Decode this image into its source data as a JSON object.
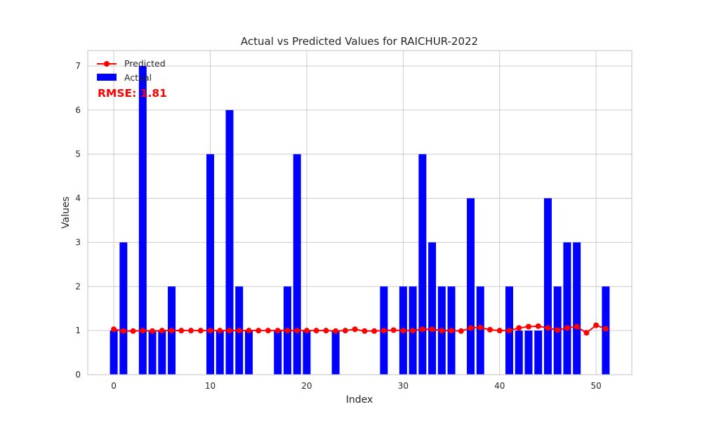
{
  "chart_data": {
    "type": "bar",
    "title": "Actual vs Predicted Values for RAICHUR-2022",
    "xlabel": "Index",
    "ylabel": "Values",
    "xlim": [
      -2.7,
      53.7
    ],
    "ylim": [
      0,
      7.35
    ],
    "xticks": [
      0,
      10,
      20,
      30,
      40,
      50
    ],
    "yticks": [
      0,
      1,
      2,
      3,
      4,
      5,
      6,
      7
    ],
    "grid": true,
    "legend_position": "top-left",
    "annotation": {
      "text": "RMSE: 1.81",
      "color": "#ff0000"
    },
    "series": [
      {
        "name": "Actual",
        "kind": "bar",
        "color": "#0000ff",
        "x": [
          0,
          1,
          2,
          3,
          4,
          5,
          6,
          7,
          8,
          9,
          10,
          11,
          12,
          13,
          14,
          15,
          16,
          17,
          18,
          19,
          20,
          21,
          22,
          23,
          24,
          25,
          26,
          27,
          28,
          29,
          30,
          31,
          32,
          33,
          34,
          35,
          36,
          37,
          38,
          39,
          40,
          41,
          42,
          43,
          44,
          45,
          46,
          47,
          48,
          49,
          50,
          51
        ],
        "values": [
          1,
          3,
          0,
          7,
          1,
          1,
          2,
          0,
          0,
          0,
          5,
          1,
          6,
          2,
          1,
          0,
          0,
          1,
          2,
          5,
          1,
          0,
          0,
          1,
          0,
          0,
          0,
          0,
          2,
          0,
          2,
          2,
          5,
          3,
          2,
          2,
          0,
          4,
          2,
          0,
          0,
          2,
          1,
          1,
          1,
          4,
          2,
          3,
          3,
          0,
          0,
          2
        ]
      },
      {
        "name": "Predicted",
        "kind": "line",
        "color": "#ff0000",
        "x": [
          0,
          1,
          2,
          3,
          4,
          5,
          6,
          7,
          8,
          9,
          10,
          11,
          12,
          13,
          14,
          15,
          16,
          17,
          18,
          19,
          20,
          21,
          22,
          23,
          24,
          25,
          26,
          27,
          28,
          29,
          30,
          31,
          32,
          33,
          34,
          35,
          36,
          37,
          38,
          39,
          40,
          41,
          42,
          43,
          44,
          45,
          46,
          47,
          48,
          49,
          50,
          51
        ],
        "values": [
          1.03,
          0.99,
          0.99,
          1.0,
          0.99,
          1.0,
          1.0,
          1.0,
          1.0,
          1.0,
          1.0,
          1.0,
          1.0,
          1.0,
          1.0,
          1.0,
          1.0,
          1.0,
          1.0,
          1.0,
          1.0,
          1.0,
          1.0,
          0.99,
          1.0,
          1.03,
          0.99,
          0.99,
          1.0,
          1.01,
          1.0,
          1.0,
          1.03,
          1.03,
          1.0,
          1.0,
          0.99,
          1.06,
          1.07,
          1.02,
          1.0,
          1.0,
          1.06,
          1.09,
          1.1,
          1.06,
          1.01,
          1.06,
          1.09,
          0.95,
          1.12,
          1.04
        ]
      }
    ]
  }
}
